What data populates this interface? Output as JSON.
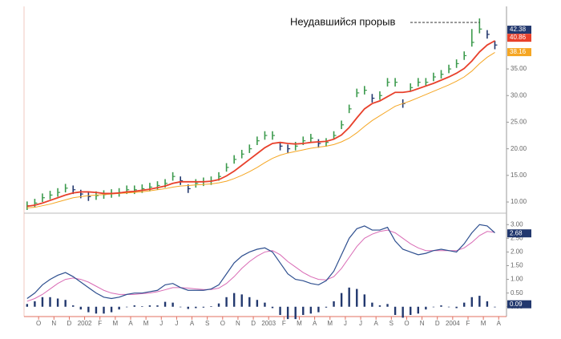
{
  "chart_data": {
    "type": "range-bar",
    "annotation": "Неудавшийся прорыв",
    "x": [
      0.25,
      0.75,
      1.25,
      1.75,
      2.25,
      2.75,
      3.25,
      3.75,
      4.25,
      4.75,
      5.25,
      5.75,
      6.25,
      6.75,
      7.25,
      7.75,
      8.25,
      8.75,
      9.25,
      9.75,
      10.25,
      10.75,
      11.25,
      11.75,
      12.25,
      12.75,
      13.25,
      13.75,
      14.25,
      14.75,
      15.25,
      15.75,
      16.25,
      16.75,
      17.25,
      17.75,
      18.25,
      18.75,
      19.25,
      19.75,
      20.25,
      20.75,
      21.25,
      21.75,
      22.25,
      22.75,
      23.25,
      23.75,
      24.25,
      24.75,
      25.25,
      25.75,
      26.25,
      26.75,
      27.25,
      27.75,
      28.25,
      28.75,
      29.25,
      29.75,
      30.25,
      30.75
    ],
    "xlim": [
      0.05,
      31.3
    ],
    "xticks": [
      {
        "value": 1,
        "label": "O"
      },
      {
        "value": 2,
        "label": "N"
      },
      {
        "value": 3,
        "label": "D"
      },
      {
        "value": 4,
        "label": "2002"
      },
      {
        "value": 5,
        "label": "F"
      },
      {
        "value": 6,
        "label": "M"
      },
      {
        "value": 7,
        "label": "A"
      },
      {
        "value": 8,
        "label": "M"
      },
      {
        "value": 9,
        "label": "J"
      },
      {
        "value": 10,
        "label": "J"
      },
      {
        "value": 11,
        "label": "A"
      },
      {
        "value": 12,
        "label": "S"
      },
      {
        "value": 13,
        "label": "O"
      },
      {
        "value": 14,
        "label": "N"
      },
      {
        "value": 15,
        "label": "D"
      },
      {
        "value": 16,
        "label": "2003"
      },
      {
        "value": 17,
        "label": "F"
      },
      {
        "value": 18,
        "label": "M"
      },
      {
        "value": 19,
        "label": "A"
      },
      {
        "value": 20,
        "label": "M"
      },
      {
        "value": 21,
        "label": "J"
      },
      {
        "value": 22,
        "label": "J"
      },
      {
        "value": 23,
        "label": "A"
      },
      {
        "value": 24,
        "label": "S"
      },
      {
        "value": 25,
        "label": "O"
      },
      {
        "value": 26,
        "label": "N"
      },
      {
        "value": 27,
        "label": "D"
      },
      {
        "value": 28,
        "label": "2004"
      },
      {
        "value": 29,
        "label": "F"
      },
      {
        "value": 30,
        "label": "M"
      },
      {
        "value": 31,
        "label": "A"
      }
    ],
    "high": [
      10.1,
      10.6,
      11.6,
      12.1,
      12.6,
      13.4,
      13.1,
      12.3,
      11.8,
      12.0,
      12.2,
      12.4,
      12.6,
      13.1,
      13.1,
      13.3,
      13.6,
      13.9,
      14.3,
      15.6,
      14.8,
      13.3,
      14.3,
      14.6,
      14.8,
      15.6,
      17.3,
      18.8,
      19.8,
      20.8,
      22.3,
      23.3,
      23.3,
      21.3,
      20.8,
      21.3,
      22.3,
      22.8,
      21.8,
      22.0,
      23.3,
      25.3,
      28.3,
      31.3,
      31.8,
      30.3,
      30.8,
      33.3,
      33.3,
      29.3,
      32.3,
      33.3,
      33.3,
      34.3,
      34.8,
      35.8,
      36.8,
      38.3,
      42.5,
      44.5,
      42.3,
      40.3
    ],
    "low": [
      8.5,
      9.0,
      10.0,
      10.5,
      11.0,
      11.8,
      11.5,
      10.7,
      10.2,
      10.4,
      10.6,
      10.8,
      11.0,
      11.5,
      11.5,
      11.7,
      12.0,
      12.3,
      12.7,
      14.0,
      13.2,
      11.7,
      12.7,
      13.0,
      13.2,
      14.0,
      15.7,
      17.2,
      18.2,
      19.2,
      20.7,
      21.7,
      21.7,
      19.7,
      19.2,
      19.7,
      20.7,
      21.2,
      20.2,
      20.4,
      21.7,
      23.7,
      26.7,
      29.7,
      30.2,
      28.7,
      29.2,
      31.7,
      31.7,
      27.7,
      30.7,
      31.7,
      31.7,
      32.7,
      33.2,
      34.2,
      35.2,
      36.7,
      39.2,
      41.7,
      40.7,
      38.7
    ],
    "close": [
      9.3,
      9.8,
      10.8,
      11.3,
      11.8,
      12.6,
      12.3,
      11.5,
      11.0,
      11.2,
      11.4,
      11.6,
      11.8,
      12.3,
      12.3,
      12.5,
      12.8,
      13.1,
      13.5,
      14.8,
      14.0,
      12.5,
      13.5,
      13.8,
      14.0,
      14.8,
      16.5,
      18.0,
      19.0,
      20.0,
      21.5,
      22.5,
      22.5,
      20.5,
      20.0,
      20.5,
      21.5,
      22.0,
      21.0,
      21.2,
      22.5,
      24.5,
      27.5,
      30.5,
      31.0,
      29.5,
      30.0,
      32.5,
      32.5,
      28.5,
      31.5,
      32.5,
      32.5,
      33.5,
      34.0,
      35.0,
      36.0,
      37.5,
      40.0,
      42.5,
      41.5,
      39.5
    ],
    "up_color": "#3b9a4c",
    "down_color": "#22386e",
    "series": [
      {
        "color": "#e8412c",
        "values": [
          9.2,
          9.4,
          9.8,
          10.3,
          10.8,
          11.3,
          11.7,
          11.9,
          11.9,
          11.8,
          11.6,
          11.6,
          11.7,
          11.9,
          12.0,
          12.2,
          12.4,
          12.7,
          13.0,
          13.5,
          13.8,
          13.8,
          13.8,
          13.8,
          13.9,
          14.2,
          14.9,
          15.8,
          16.9,
          18.0,
          19.1,
          20.2,
          21.0,
          21.2,
          21.0,
          20.9,
          21.0,
          21.2,
          21.3,
          21.4,
          21.8,
          22.6,
          24.0,
          25.8,
          27.5,
          28.5,
          29.0,
          29.8,
          30.6,
          30.6,
          30.8,
          31.3,
          31.8,
          32.3,
          32.9,
          33.5,
          34.2,
          35.1,
          36.5,
          38.2,
          39.5,
          40.3
        ]
      },
      {
        "color": "#f5a623",
        "values": [
          8.9,
          9.0,
          9.3,
          9.6,
          10.0,
          10.4,
          10.8,
          11.0,
          11.2,
          11.3,
          11.4,
          11.5,
          11.6,
          11.7,
          11.8,
          11.9,
          12.1,
          12.3,
          12.5,
          12.8,
          13.0,
          13.1,
          13.2,
          13.3,
          13.4,
          13.6,
          13.9,
          14.4,
          15.0,
          15.7,
          16.5,
          17.4,
          18.2,
          18.8,
          19.2,
          19.5,
          19.8,
          20.1,
          20.3,
          20.5,
          20.8,
          21.3,
          22.0,
          23.0,
          24.2,
          25.3,
          26.2,
          27.1,
          28.0,
          28.5,
          29.0,
          29.6,
          30.2,
          30.8,
          31.4,
          32.0,
          32.7,
          33.5,
          34.6,
          36.0,
          37.2,
          38.1
        ]
      }
    ],
    "ylim": [
      8.5,
      45.7
    ],
    "yticks": [
      {
        "value": 10,
        "label": "10.00"
      },
      {
        "value": 15,
        "label": "15.00"
      },
      {
        "value": 20,
        "label": "20.00"
      },
      {
        "value": 25,
        "label": "25.00"
      },
      {
        "value": 30,
        "label": "30.00"
      },
      {
        "value": 35,
        "label": "35.00"
      }
    ],
    "markers": [
      {
        "value": 42.38,
        "color": "#22386e"
      },
      {
        "value": 40.86,
        "color": "#e8412c"
      },
      {
        "value": 38.16,
        "color": "#f5a623"
      }
    ],
    "macd": {
      "type": "line",
      "series": [
        {
          "color": "#2e4f8f",
          "values": [
            0.3,
            0.5,
            0.8,
            1.0,
            1.15,
            1.25,
            1.1,
            0.9,
            0.7,
            0.5,
            0.35,
            0.3,
            0.35,
            0.45,
            0.5,
            0.5,
            0.55,
            0.6,
            0.8,
            0.85,
            0.7,
            0.6,
            0.6,
            0.6,
            0.65,
            0.8,
            1.2,
            1.6,
            1.85,
            2.0,
            2.1,
            2.15,
            2.0,
            1.6,
            1.2,
            1.0,
            0.95,
            0.85,
            0.8,
            0.95,
            1.3,
            1.9,
            2.5,
            2.85,
            2.95,
            2.8,
            2.8,
            2.9,
            2.4,
            2.1,
            2.0,
            1.9,
            1.95,
            2.05,
            2.1,
            2.05,
            2.0,
            2.3,
            2.7,
            3.0,
            2.95,
            2.7
          ]
        },
        {
          "color": "#d96bb5",
          "values": [
            0.2,
            0.3,
            0.45,
            0.65,
            0.85,
            1.0,
            1.05,
            1.0,
            0.9,
            0.75,
            0.6,
            0.5,
            0.45,
            0.45,
            0.45,
            0.48,
            0.5,
            0.55,
            0.62,
            0.7,
            0.7,
            0.68,
            0.65,
            0.63,
            0.63,
            0.68,
            0.85,
            1.1,
            1.4,
            1.65,
            1.85,
            2.0,
            2.05,
            1.9,
            1.65,
            1.45,
            1.25,
            1.1,
            1.0,
            0.98,
            1.1,
            1.4,
            1.8,
            2.2,
            2.5,
            2.65,
            2.75,
            2.8,
            2.7,
            2.5,
            2.3,
            2.15,
            2.05,
            2.05,
            2.05,
            2.05,
            2.05,
            2.15,
            2.35,
            2.6,
            2.75,
            2.72
          ]
        }
      ],
      "histogram": {
        "color": "#22386e",
        "values": [
          0.1,
          0.2,
          0.35,
          0.35,
          0.3,
          0.25,
          0.05,
          -0.1,
          -0.2,
          -0.25,
          -0.25,
          -0.2,
          -0.1,
          0.0,
          0.05,
          0.02,
          0.05,
          0.05,
          0.18,
          0.15,
          0.0,
          -0.08,
          -0.05,
          -0.03,
          0.02,
          0.12,
          0.35,
          0.5,
          0.45,
          0.35,
          0.25,
          0.15,
          -0.05,
          -0.3,
          -0.45,
          -0.45,
          -0.3,
          -0.25,
          -0.2,
          -0.03,
          0.2,
          0.5,
          0.7,
          0.65,
          0.45,
          0.15,
          0.05,
          0.1,
          -0.3,
          -0.4,
          -0.3,
          -0.25,
          -0.1,
          0.0,
          0.05,
          0.0,
          -0.05,
          0.15,
          0.35,
          0.4,
          0.2,
          -0.02
        ]
      },
      "ylim": [
        -0.3,
        3.3
      ],
      "yticks": [
        {
          "value": 0,
          "label": "0.00"
        },
        {
          "value": 0.5,
          "label": "0.50"
        },
        {
          "value": 1,
          "label": "1.00"
        },
        {
          "value": 1.5,
          "label": "1.50"
        },
        {
          "value": 2,
          "label": "2.00"
        },
        {
          "value": 2.5,
          "label": "2.50"
        },
        {
          "value": 3,
          "label": "3.00"
        }
      ],
      "markers": [
        {
          "value": 2.68,
          "color": "#22386e"
        },
        {
          "value": 0.09,
          "color": "#22386e"
        }
      ]
    }
  }
}
